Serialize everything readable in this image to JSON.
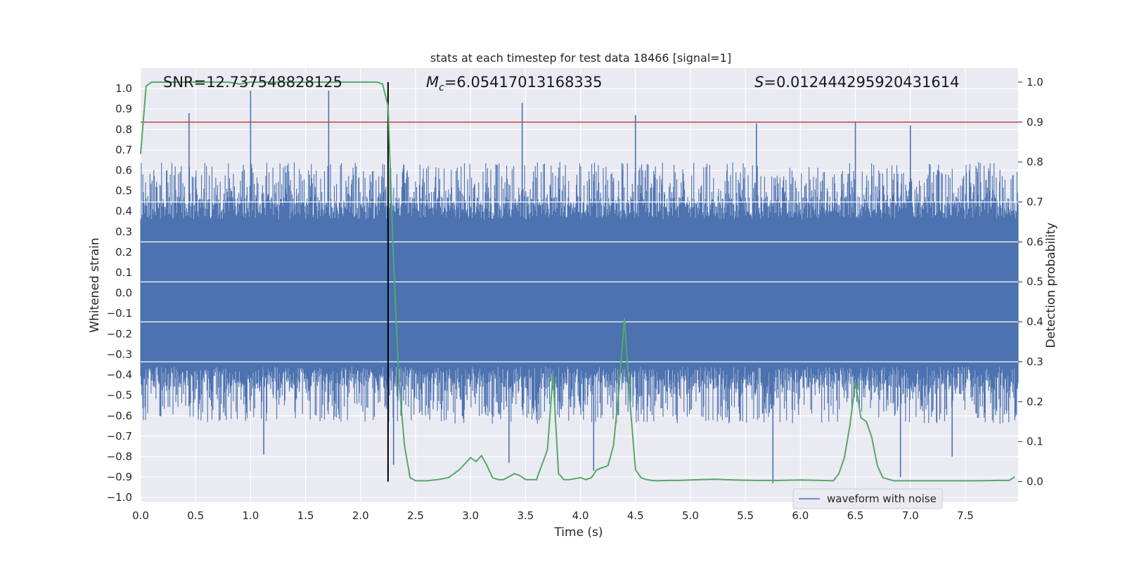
{
  "chart_data": {
    "type": "line",
    "title": "stats at each timestep for test data 18466 [signal=1]",
    "xlabel": "Time (s)",
    "ylabel_left": "Whitened strain",
    "ylabel_right": "Detection probability",
    "xlim": [
      0.0,
      7.98
    ],
    "ylim_left": [
      -1.02,
      1.1
    ],
    "ylim_right": [
      -0.05,
      1.035
    ],
    "x_ticks": [
      0.0,
      0.5,
      1.0,
      1.5,
      2.0,
      2.5,
      3.0,
      3.5,
      4.0,
      4.5,
      5.0,
      5.5,
      6.0,
      6.5,
      7.0,
      7.5
    ],
    "x_tick_labels": [
      "0.0",
      "0.5",
      "1.0",
      "1.5",
      "2.0",
      "2.5",
      "3.0",
      "3.5",
      "4.0",
      "4.5",
      "5.0",
      "5.5",
      "6.0",
      "6.5",
      "7.0",
      "7.5"
    ],
    "y_left_ticks": [
      1.0,
      0.9,
      0.8,
      0.7,
      0.6,
      0.5,
      0.4,
      0.3,
      0.2,
      0.1,
      0.0,
      -0.1,
      -0.2,
      -0.3,
      -0.4,
      -0.5,
      -0.6,
      -0.7,
      -0.8,
      -0.9,
      -1.0
    ],
    "y_left_tick_labels": [
      "1.0",
      "0.9",
      "0.8",
      "0.7",
      "0.6",
      "0.5",
      "0.4",
      "0.3",
      "0.2",
      "0.1",
      "0.0",
      "−0.1",
      "−0.2",
      "−0.3",
      "−0.4",
      "−0.5",
      "−0.6",
      "−0.7",
      "−0.8",
      "−0.9",
      "−1.0"
    ],
    "y_right_ticks": [
      1.0,
      0.9,
      0.8,
      0.7,
      0.6,
      0.5,
      0.4,
      0.3,
      0.2,
      0.1,
      0.0
    ],
    "y_right_tick_labels": [
      "1.0",
      "0.9",
      "0.8",
      "0.7",
      "0.6",
      "0.5",
      "0.4",
      "0.3",
      "0.2",
      "0.1",
      "0.0"
    ],
    "grid": true,
    "legend_position": "lower-right",
    "series": [
      {
        "name": "waveform with noise",
        "color": "#4c72b0",
        "axis": "left",
        "peaks": [
          {
            "x": 0.44,
            "y": 0.88
          },
          {
            "x": 1.0,
            "y": 0.99
          },
          {
            "x": 1.71,
            "y": 0.99
          },
          {
            "x": 3.47,
            "y": 0.93
          },
          {
            "x": 4.5,
            "y": 0.87
          },
          {
            "x": 5.6,
            "y": 0.83
          },
          {
            "x": 6.5,
            "y": 0.84
          },
          {
            "x": 7.0,
            "y": 0.82
          },
          {
            "x": 5.75,
            "y": -0.93
          },
          {
            "x": 6.91,
            "y": -0.9
          },
          {
            "x": 2.3,
            "y": -0.84
          },
          {
            "x": 3.35,
            "y": -0.83
          },
          {
            "x": 4.12,
            "y": -0.87
          },
          {
            "x": 1.12,
            "y": -0.79
          },
          {
            "x": 7.38,
            "y": -0.8
          }
        ]
      },
      {
        "name": "",
        "color": "#55a868",
        "axis": "right",
        "x": [
          0.0,
          0.05,
          0.1,
          0.2,
          0.3,
          0.4,
          0.5,
          0.6,
          0.7,
          0.8,
          0.9,
          1.0,
          1.1,
          1.2,
          1.3,
          1.4,
          1.5,
          1.6,
          1.7,
          1.8,
          1.9,
          2.0,
          2.1,
          2.15,
          2.2,
          2.25,
          2.3,
          2.35,
          2.4,
          2.45,
          2.5,
          2.6,
          2.7,
          2.8,
          2.9,
          3.0,
          3.05,
          3.1,
          3.15,
          3.2,
          3.25,
          3.3,
          3.4,
          3.45,
          3.5,
          3.55,
          3.6,
          3.7,
          3.75,
          3.8,
          3.85,
          3.9,
          4.0,
          4.05,
          4.1,
          4.15,
          4.2,
          4.25,
          4.3,
          4.35,
          4.4,
          4.45,
          4.5,
          4.55,
          4.6,
          4.65,
          4.7,
          4.8,
          4.9,
          5.0,
          5.2,
          5.4,
          5.6,
          5.8,
          6.0,
          6.2,
          6.3,
          6.35,
          6.4,
          6.45,
          6.5,
          6.55,
          6.6,
          6.65,
          6.7,
          6.75,
          6.8,
          6.85,
          6.9,
          7.0,
          7.2,
          7.4,
          7.6,
          7.8,
          7.9,
          7.95
        ],
        "values": [
          0.82,
          0.99,
          1.0,
          1.0,
          1.0,
          1.0,
          1.0,
          1.0,
          1.0,
          1.0,
          0.995,
          1.0,
          1.0,
          1.0,
          1.0,
          1.0,
          1.0,
          1.0,
          1.0,
          1.0,
          1.0,
          1.0,
          1.0,
          1.0,
          0.995,
          0.94,
          0.55,
          0.25,
          0.09,
          0.01,
          0.002,
          0.002,
          0.005,
          0.01,
          0.03,
          0.06,
          0.05,
          0.065,
          0.04,
          0.01,
          0.005,
          0.005,
          0.02,
          0.015,
          0.005,
          0.005,
          0.005,
          0.08,
          0.27,
          0.02,
          0.005,
          0.005,
          0.01,
          0.005,
          0.01,
          0.03,
          0.035,
          0.04,
          0.09,
          0.23,
          0.41,
          0.2,
          0.03,
          0.01,
          0.005,
          0.003,
          0.002,
          0.003,
          0.003,
          0.004,
          0.006,
          0.004,
          0.003,
          0.003,
          0.004,
          0.003,
          0.002,
          0.02,
          0.06,
          0.14,
          0.25,
          0.16,
          0.15,
          0.11,
          0.04,
          0.01,
          0.006,
          0.002,
          0.002,
          0.002,
          0.002,
          0.002,
          0.002,
          0.003,
          0.003,
          0.012
        ]
      }
    ],
    "reference_lines": [
      {
        "type": "horizontal",
        "axis": "right",
        "y": 0.9,
        "color": "#c44e52"
      },
      {
        "type": "vertical",
        "x": 2.25,
        "y_from": 0.0,
        "y_to": 1.0,
        "axis": "right",
        "color": "#000000"
      }
    ],
    "annotations": {
      "snr": "SNR=12.737548828125",
      "mc_symbol": "M",
      "mc_subscript": "c",
      "mc_value": "=6.05417013168335",
      "s_symbol": "S",
      "s_value": "=0.012444295920431614"
    },
    "white_bands_right": [
      0.7,
      0.6,
      0.5,
      0.4,
      0.3
    ]
  }
}
